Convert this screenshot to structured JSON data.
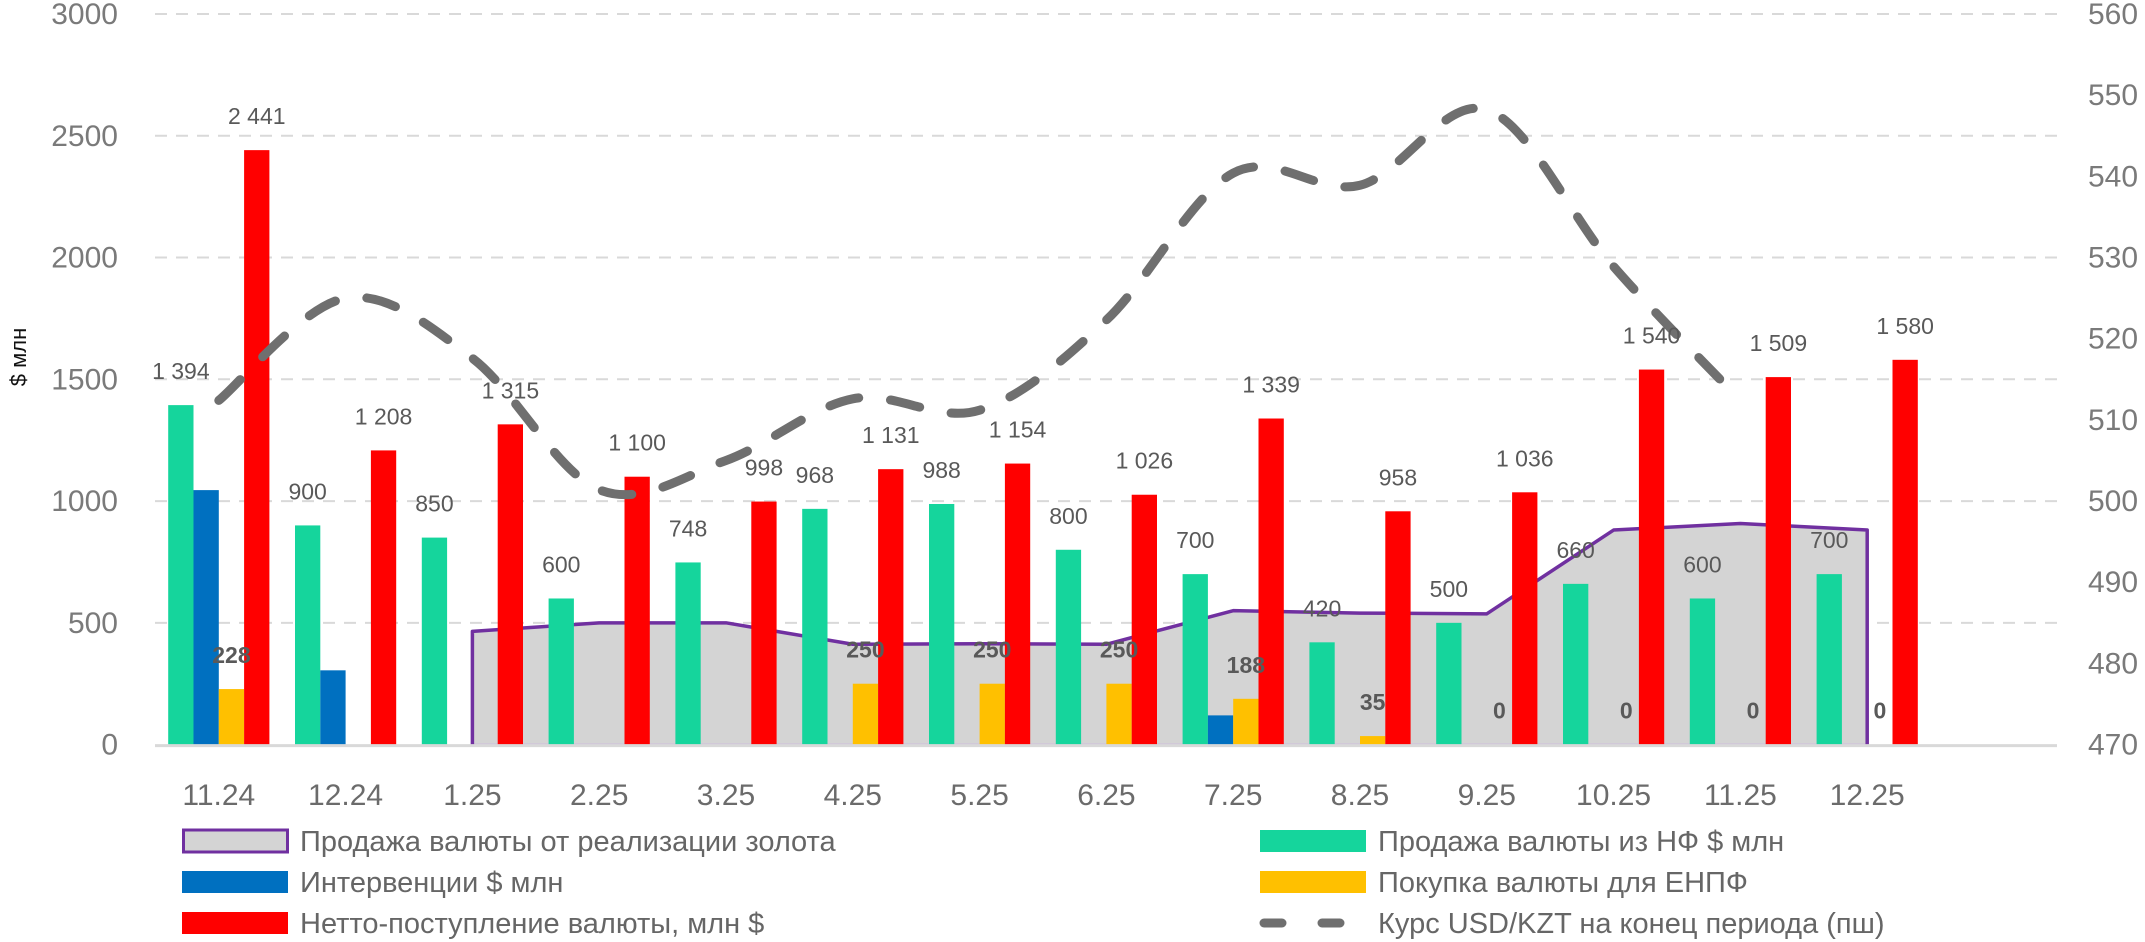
{
  "chart_data": {
    "type": "bar",
    "title": "",
    "xlabel": "",
    "ylabel": "$ млн",
    "ylim": [
      0,
      3000
    ],
    "y_ticks": [
      0,
      500,
      1000,
      1500,
      2000,
      2500,
      3000
    ],
    "y2lim": [
      470,
      560
    ],
    "y2_ticks": [
      470,
      480,
      490,
      500,
      510,
      520,
      530,
      540,
      550,
      560
    ],
    "grid": true,
    "legend_position": "bottom",
    "categories": [
      "11.24",
      "12.24",
      "1.25",
      "2.25",
      "3.25",
      "4.25",
      "5.25",
      "6.25",
      "7.25",
      "8.25",
      "9.25",
      "10.25",
      "11.25",
      "12.25"
    ],
    "series": [
      {
        "name": "Продажа валюты от реализации золота",
        "type": "area",
        "axis": "left",
        "color": "#d4d4d4",
        "stroke": "#7030a0",
        "values": [
          null,
          null,
          465,
          500,
          500,
          412,
          414,
          412,
          550,
          540,
          537,
          881,
          908,
          881
        ]
      },
      {
        "name": "Продажа валюты из НФ $ млн",
        "type": "bar",
        "axis": "left",
        "color": "#15d59c",
        "labels": true,
        "values": [
          1394,
          900,
          850,
          600,
          748,
          968,
          988,
          800,
          700,
          420,
          500,
          660,
          600,
          700
        ]
      },
      {
        "name": "Интервенции $ млн",
        "type": "bar",
        "axis": "left",
        "color": "#0070c0",
        "labels": false,
        "values": [
          1045,
          305,
          null,
          null,
          null,
          null,
          null,
          null,
          120,
          null,
          null,
          null,
          null,
          null
        ]
      },
      {
        "name": "Покупка валюты для ЕНПФ",
        "type": "bar",
        "axis": "left",
        "color": "#ffc000",
        "labels": true,
        "bold_labels": true,
        "values": [
          228,
          null,
          null,
          null,
          null,
          250,
          250,
          250,
          188,
          35,
          0,
          0,
          0,
          0
        ]
      },
      {
        "name": "Нетто-поступление валюты, млн $",
        "type": "bar",
        "axis": "left",
        "color": "#ff0000",
        "labels": true,
        "values": [
          2441,
          1208,
          1315,
          1100,
          998,
          1131,
          1154,
          1026,
          1339,
          958,
          1036,
          1540,
          1509,
          1580
        ]
      },
      {
        "name": "Курс USD/KZT на конец периода (пш)",
        "type": "line",
        "axis": "right",
        "color": "#6f6f6f",
        "dashed": true,
        "smooth": true,
        "values": [
          512.4,
          525.0,
          517.6,
          501.4,
          505.0,
          512.6,
          511.2,
          522.3,
          540.4,
          538.9,
          548.2,
          528.9,
          512.4,
          null
        ]
      }
    ]
  },
  "legend": {
    "items": [
      {
        "label": "Продажа валюты от реализации золота",
        "series": 0
      },
      {
        "label": "Продажа валюты из НФ $ млн",
        "series": 1
      },
      {
        "label": "Интервенции $ млн",
        "series": 2
      },
      {
        "label": "Покупка валюты для ЕНПФ",
        "series": 3
      },
      {
        "label": "Нетто-поступление валюты, млн $",
        "series": 4
      },
      {
        "label": "Курс USD/KZT на конец периода (пш)",
        "series": 5
      }
    ]
  }
}
